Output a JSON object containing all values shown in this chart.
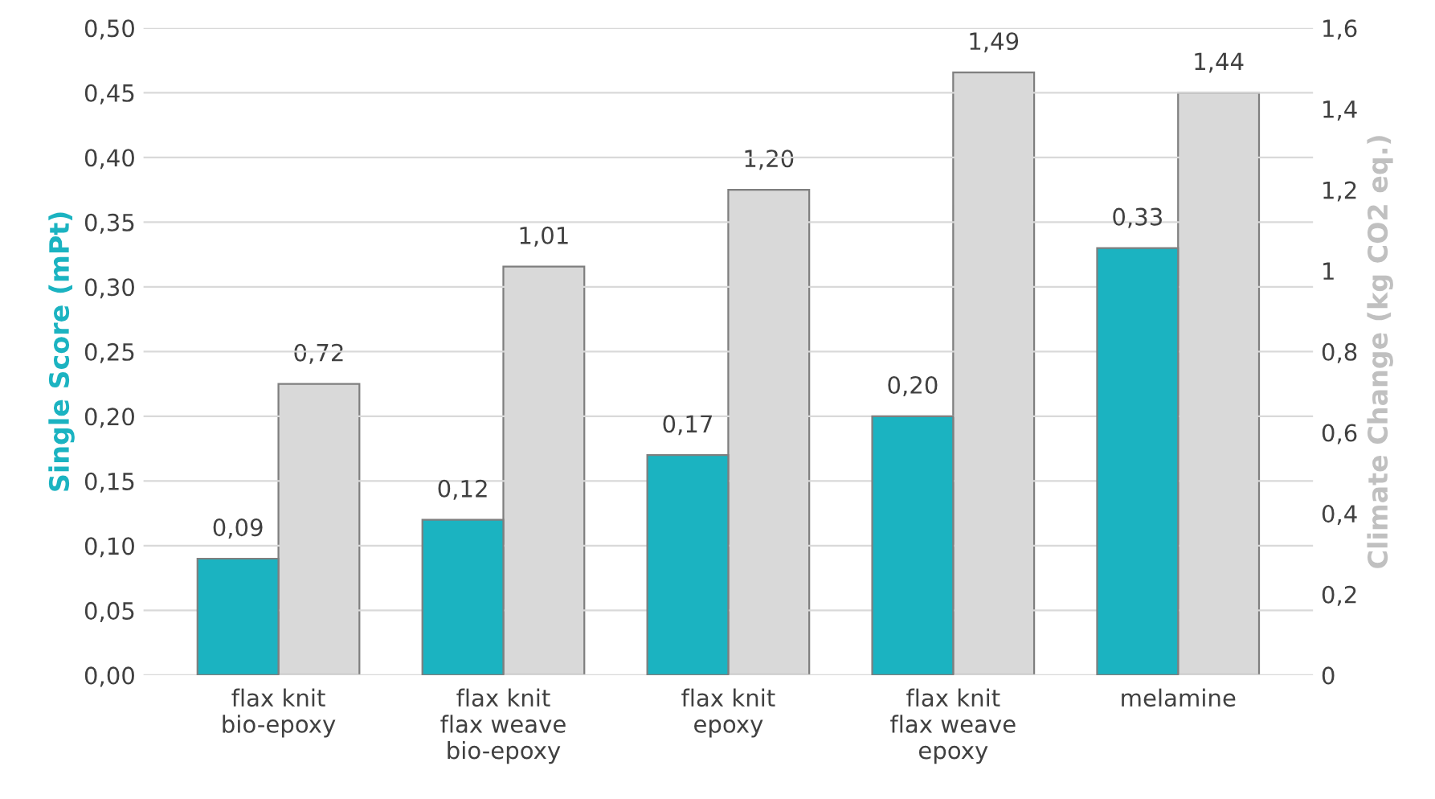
{
  "chart_data": {
    "type": "bar",
    "ylabel": "Single Score (mPt)",
    "y2label": "Climate Change (kg CO2 eq.)",
    "categories": [
      "flax knit\nbio-epoxy",
      "flax knit\nflax weave\nbio-epoxy",
      "flax knit\nepoxy",
      "flax knit\nflax weave\nepoxy",
      "melamine"
    ],
    "series": [
      {
        "color": "#1bb3c1",
        "values": [
          0.09,
          0.12,
          0.17,
          0.2,
          0.33
        ],
        "value_labels": [
          "0,09",
          "0,12",
          "0,17",
          "0,20",
          "0,33"
        ]
      },
      {
        "color": "#d9d9d9",
        "axis": "y2",
        "values": [
          0.72,
          1.01,
          1.2,
          1.49,
          1.44
        ],
        "value_labels": [
          "0,72",
          "1,01",
          "1,20",
          "1,49",
          "1,44"
        ]
      }
    ],
    "ylim": [
      0,
      0.5
    ],
    "yticks": [
      {
        "value": 0,
        "label": "0,00"
      },
      {
        "value": 0.05,
        "label": "0,05"
      },
      {
        "value": 0.1,
        "label": "0,10"
      },
      {
        "value": 0.15,
        "label": "0,15"
      },
      {
        "value": 0.2,
        "label": "0,20"
      },
      {
        "value": 0.25,
        "label": "0,25"
      },
      {
        "value": 0.3,
        "label": "0,30"
      },
      {
        "value": 0.35,
        "label": "0,35"
      },
      {
        "value": 0.4,
        "label": "0,40"
      },
      {
        "value": 0.45,
        "label": "0,45"
      },
      {
        "value": 0.5,
        "label": "0,50"
      }
    ],
    "y2lim": [
      0,
      1.6
    ],
    "y2ticks": [
      0,
      {
        "value": 0.2,
        "label": "0,2"
      },
      {
        "value": 0.4,
        "label": "0,4"
      },
      {
        "value": 0.6,
        "label": "0,6"
      },
      {
        "value": 0.8,
        "label": "0,8"
      },
      1,
      {
        "value": 1.2,
        "label": "1,2"
      },
      {
        "value": 1.4,
        "label": "1,4"
      },
      {
        "value": 1.6,
        "label": "1,6"
      }
    ],
    "grid": "y"
  }
}
